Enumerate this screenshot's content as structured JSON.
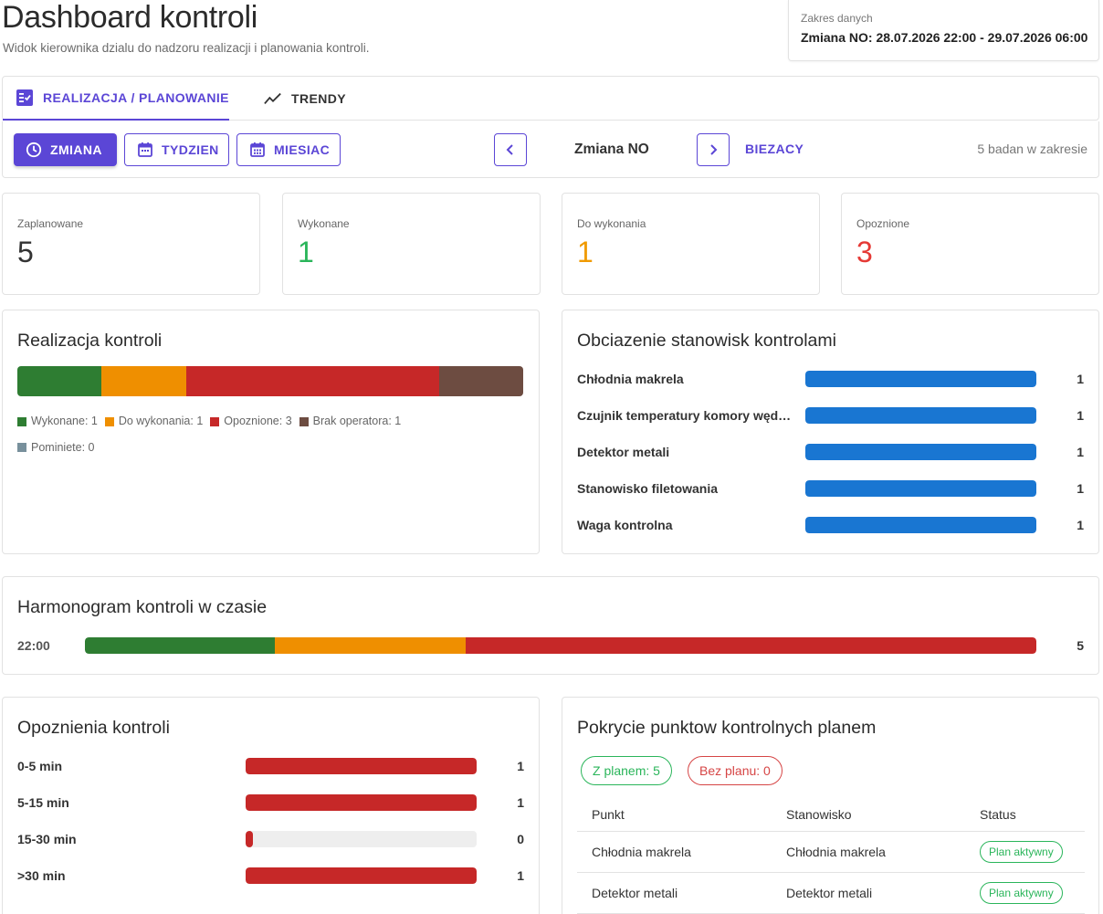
{
  "header": {
    "title": "Dashboard kontroli",
    "subtitle": "Widok kierownika dzialu do nadzoru realizacji i planowania kontroli."
  },
  "range": {
    "label": "Zakres danych",
    "value": "Zmiana NO: 28.07.2026 22:00 - 29.07.2026 06:00"
  },
  "tabs": [
    {
      "label": "REALIZACJA / PLANOWANIE",
      "icon": "checklist-icon",
      "active": true
    },
    {
      "label": "TRENDY",
      "icon": "trending-icon",
      "active": false
    }
  ],
  "toolbar": {
    "shift_label": "ZMIANA",
    "week_label": "TYDZIEN",
    "month_label": "MIESIAC",
    "period_label": "Zmiana NO",
    "current_label": "BIEZACY",
    "count_label": "5 badan w zakresie"
  },
  "colors": {
    "accent": "#5b46d6",
    "done": "#2e7d32",
    "todo": "#ef8f00",
    "late": "#c62828",
    "no_operator": "#6d4c41",
    "skipped": "#78909c",
    "station_bar": "#1976d2",
    "green_text": "#2ab55a",
    "red_text": "#e53935"
  },
  "stats": [
    {
      "label": "Zaplanowane",
      "value": "5",
      "color": "#333333"
    },
    {
      "label": "Wykonane",
      "value": "1",
      "color": "#2ab55a"
    },
    {
      "label": "Do wykonania",
      "value": "1",
      "color": "#f09a00"
    },
    {
      "label": "Opoznione",
      "value": "3",
      "color": "#e53935"
    }
  ],
  "realization": {
    "title": "Realizacja kontroli",
    "segments": [
      {
        "label": "Wykonane: 1",
        "value": 1,
        "color": "#2e7d32"
      },
      {
        "label": "Do wykonania: 1",
        "value": 1,
        "color": "#ef8f00"
      },
      {
        "label": "Opoznione: 3",
        "value": 3,
        "color": "#c62828"
      },
      {
        "label": "Brak operatora: 1",
        "value": 1,
        "color": "#6d4c41"
      },
      {
        "label": "Pominiete: 0",
        "value": 0,
        "color": "#78909c"
      }
    ]
  },
  "stations": {
    "title": "Obciazenie stanowisk kontrolami",
    "max": 1,
    "rows": [
      {
        "label": "Chłodnia makrela",
        "value": 1,
        "display": "1"
      },
      {
        "label": "Czujnik temperatury komory wędzarniczej",
        "value": 1,
        "display": "1"
      },
      {
        "label": "Detektor metali",
        "value": 1,
        "display": "1"
      },
      {
        "label": "Stanowisko filetowania",
        "value": 1,
        "display": "1"
      },
      {
        "label": "Waga kontrolna",
        "value": 1,
        "display": "1"
      }
    ]
  },
  "schedule": {
    "title": "Harmonogram kontroli w czasie",
    "rows": [
      {
        "time": "22:00",
        "total": "5",
        "segments": [
          {
            "value": 1,
            "color": "#2e7d32"
          },
          {
            "value": 1,
            "color": "#ef8f00"
          },
          {
            "value": 3,
            "color": "#c62828"
          }
        ]
      }
    ]
  },
  "delays": {
    "title": "Opoznienia kontroli",
    "max": 1,
    "rows": [
      {
        "label": "0-5 min",
        "value": 1,
        "display": "1"
      },
      {
        "label": "5-15 min",
        "value": 1,
        "display": "1"
      },
      {
        "label": "15-30 min",
        "value": 0,
        "display": "0"
      },
      {
        "label": ">30 min",
        "value": 1,
        "display": "1"
      }
    ]
  },
  "coverage": {
    "title": "Pokrycie punktow kontrolnych planem",
    "with_plan": "Z planem: 5",
    "without_plan": "Bez planu: 0",
    "columns": [
      "Punkt",
      "Stanowisko",
      "Status"
    ],
    "rows": [
      {
        "point": "Chłodnia makrela",
        "station": "Chłodnia makrela",
        "status": "Plan aktywny"
      },
      {
        "point": "Detektor metali",
        "station": "Detektor metali",
        "status": "Plan aktywny"
      }
    ]
  }
}
